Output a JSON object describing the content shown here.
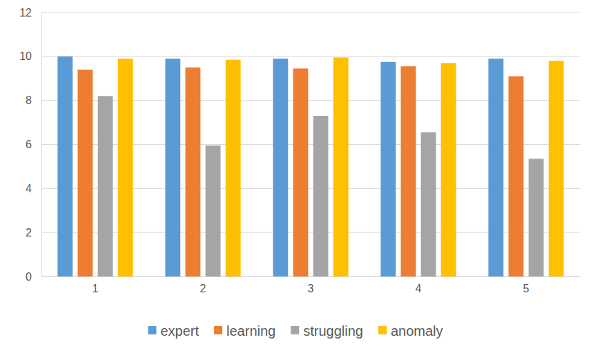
{
  "chart_data": {
    "type": "bar",
    "categories": [
      "1",
      "2",
      "3",
      "4",
      "5"
    ],
    "series": [
      {
        "name": "expert",
        "color": "#5b9bd5",
        "values": [
          10.0,
          9.9,
          9.9,
          9.75,
          9.9
        ]
      },
      {
        "name": "learning",
        "color": "#ed7d31",
        "values": [
          9.4,
          9.5,
          9.45,
          9.55,
          9.1
        ]
      },
      {
        "name": "struggling",
        "color": "#a5a5a5",
        "values": [
          8.2,
          5.95,
          7.3,
          6.55,
          5.35
        ]
      },
      {
        "name": "anomaly",
        "color": "#ffc000",
        "values": [
          9.9,
          9.85,
          9.95,
          9.7,
          9.8
        ]
      }
    ],
    "ylim": [
      0,
      12
    ],
    "yticks": [
      0,
      2,
      4,
      6,
      8,
      10,
      12
    ],
    "grid": true,
    "legend": "bottom"
  }
}
